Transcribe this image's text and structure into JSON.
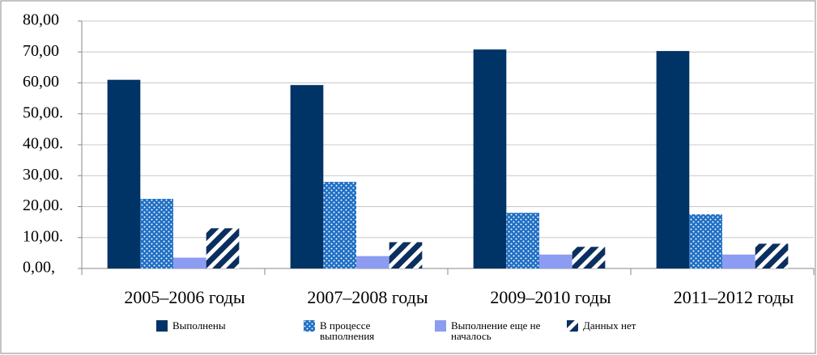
{
  "chart_data": {
    "type": "bar",
    "categories": [
      "2005–2006 годы",
      "2007–2008 годы",
      "2009–2010 годы",
      "2011–2012 годы"
    ],
    "series": [
      {
        "name": "Выполнены",
        "color": "#003366",
        "pattern": "solid",
        "values": [
          61.0,
          59.3,
          70.8,
          70.3
        ]
      },
      {
        "name": "В процессе выполнения",
        "color": "#1f6fc4",
        "pattern": "dots",
        "values": [
          22.5,
          28.0,
          18.0,
          17.5
        ]
      },
      {
        "name": "Выполнение еще не началось",
        "color": "#8c9cf2",
        "pattern": "solid",
        "values": [
          3.5,
          4.0,
          4.5,
          4.5
        ]
      },
      {
        "name": "Данных нет",
        "color": "#0b2f5e",
        "pattern": "diagonal",
        "values": [
          13.0,
          8.5,
          7.0,
          8.0
        ]
      }
    ],
    "ylim": [
      0,
      80
    ],
    "yticks": [
      {
        "value": 0,
        "label": "0,00,"
      },
      {
        "value": 10,
        "label": "10,00."
      },
      {
        "value": 20,
        "label": "20,00."
      },
      {
        "value": 30,
        "label": "30,00."
      },
      {
        "value": 40,
        "label": "40,00."
      },
      {
        "value": 50,
        "label": "50,00."
      },
      {
        "value": 60,
        "label": "60,00"
      },
      {
        "value": 70,
        "label": "70,00"
      },
      {
        "value": 80,
        "label": "80,00"
      }
    ],
    "grid": true
  }
}
